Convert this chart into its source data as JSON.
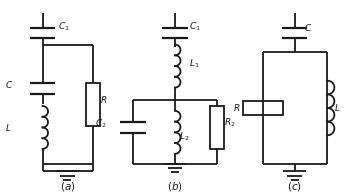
{
  "background": "#ffffff",
  "line_color": "#1a1a1a",
  "line_width": 1.3,
  "label_fontsize": 6.5,
  "sub_label_fontsize": 7.5
}
